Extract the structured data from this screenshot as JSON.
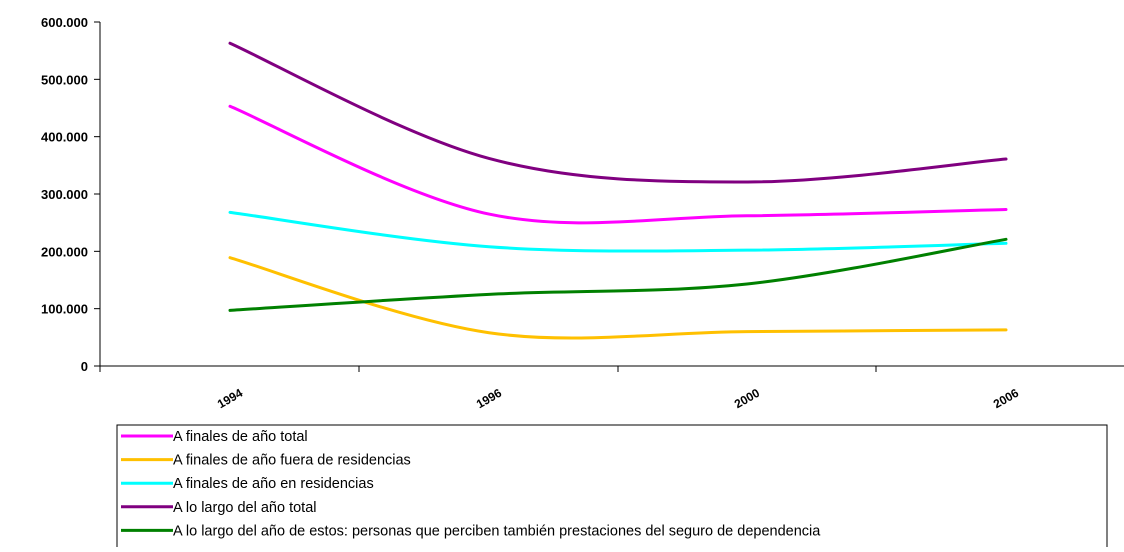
{
  "chart_data": {
    "type": "line",
    "title": "",
    "xlabel": "",
    "ylabel": "",
    "ylim": [
      0,
      600000
    ],
    "y_ticks": [
      0,
      100000,
      200000,
      300000,
      400000,
      500000,
      600000
    ],
    "y_tick_labels": [
      "0",
      "100.000",
      "200.000",
      "300.000",
      "400.000",
      "500.000",
      "600.000"
    ],
    "categories": [
      "1994",
      "1996",
      "2000",
      "2006"
    ],
    "x_tick_labels": [
      "1994",
      "1996",
      "2000",
      "2006"
    ],
    "grid": false,
    "legend_position": "bottom",
    "series": [
      {
        "name": "A finales de año total",
        "color": "#ff00ff",
        "x": [
          1994,
          1996,
          2000,
          2006
        ],
        "values": [
          453000,
          265000,
          262000,
          273000
        ]
      },
      {
        "name": "A finales de año fuera de residencias",
        "color": "#ffc000",
        "x": [
          1994,
          1996,
          2000,
          2006
        ],
        "values": [
          189000,
          58000,
          60000,
          63000
        ]
      },
      {
        "name": "A finales de año en residencias",
        "color": "#00ffff",
        "x": [
          1994,
          1996,
          2000,
          2006
        ],
        "values": [
          268000,
          208000,
          202000,
          214000
        ]
      },
      {
        "name": "A lo largo del año total",
        "color": "#800080",
        "x": [
          1994,
          1996,
          2000,
          2006
        ],
        "values": [
          563000,
          362000,
          321000,
          361000
        ]
      },
      {
        "name": "A lo largo del año de estos: personas que perciben también prestaciones del seguro de dependencia",
        "color": "#008000",
        "x": [
          1994,
          1996,
          2000,
          2006
        ],
        "values": [
          97000,
          125000,
          143000,
          221000
        ]
      }
    ]
  }
}
